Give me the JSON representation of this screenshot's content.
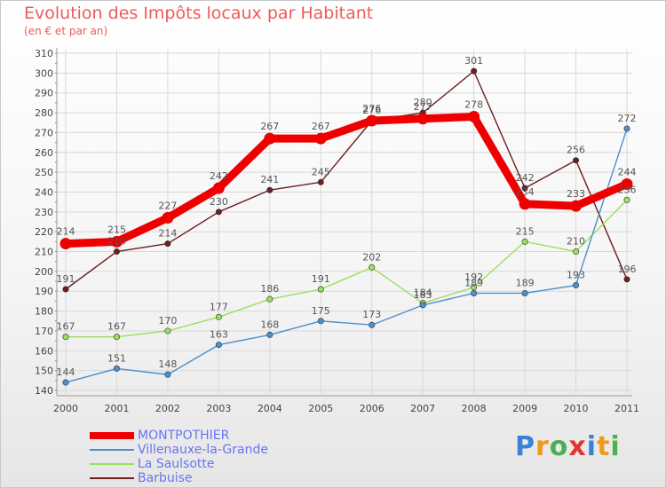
{
  "chart_data": {
    "type": "line",
    "title": "Evolution des Impôts locaux par Habitant",
    "subtitle": "(en € et par an)",
    "categories": [
      "2000",
      "2001",
      "2002",
      "2003",
      "2004",
      "2005",
      "2006",
      "2007",
      "2008",
      "2009",
      "2010",
      "2011"
    ],
    "yticks": [
      140,
      150,
      160,
      170,
      180,
      190,
      200,
      210,
      220,
      230,
      240,
      250,
      260,
      270,
      280,
      290,
      300,
      310
    ],
    "ylim": [
      140,
      310
    ],
    "series": [
      {
        "name": "Barbuise",
        "color": "#6b1f1f",
        "values": [
          191,
          210,
          214,
          230,
          241,
          245,
          276,
          280,
          301,
          242,
          256,
          196
        ]
      },
      {
        "name": "La Saulsotte",
        "color": "#99e05a",
        "values": [
          167,
          167,
          170,
          177,
          186,
          191,
          202,
          184,
          192,
          215,
          210,
          236
        ]
      },
      {
        "name": "Villenauxe-la-Grande",
        "color": "#4a90cf",
        "values": [
          144,
          151,
          148,
          163,
          168,
          175,
          173,
          183,
          189,
          189,
          193,
          272
        ]
      },
      {
        "name": "MONTPOTHIER",
        "color": "#ee0000",
        "values": [
          214,
          215,
          227,
          242,
          267,
          267,
          276,
          277,
          278,
          234,
          233,
          244
        ]
      }
    ],
    "legend": [
      {
        "name": "MONTPOTHIER",
        "color": "#ee0000"
      },
      {
        "name": "Villenauxe-la-Grande",
        "color": "#4a90cf"
      },
      {
        "name": "La Saulsotte",
        "color": "#99e05a"
      },
      {
        "name": "Barbuise",
        "color": "#6b1f1f"
      }
    ]
  },
  "brand": {
    "letters": [
      "P",
      "r",
      "o",
      "x",
      "i",
      "t",
      "i"
    ],
    "colors": [
      "#3b82d6",
      "#ef9a1a",
      "#4caf50",
      "#e33434",
      "#3b82d6",
      "#ef9a1a",
      "#4caf50"
    ]
  }
}
